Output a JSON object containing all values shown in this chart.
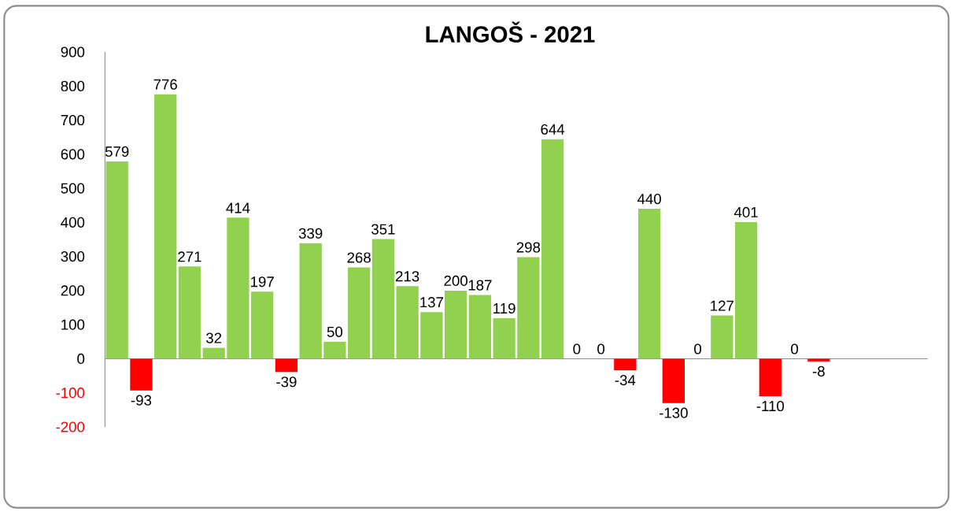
{
  "chart_data": {
    "type": "bar",
    "title": "LANGOŠ - 2021",
    "categories": [
      null,
      null,
      null,
      null,
      null,
      null,
      null,
      null,
      null,
      null,
      null,
      null,
      null,
      null,
      null,
      null,
      null,
      null,
      null,
      null,
      null,
      null,
      null,
      null,
      null,
      null,
      null,
      null,
      null,
      null,
      null,
      null,
      null,
      null
    ],
    "values": [
      579,
      -93,
      776,
      271,
      32,
      414,
      197,
      -39,
      339,
      50,
      268,
      351,
      213,
      137,
      200,
      187,
      119,
      298,
      644,
      0,
      0,
      -34,
      440,
      -130,
      0,
      127,
      401,
      -110,
      0,
      -8,
      null,
      null,
      null,
      null
    ],
    "colors": [
      "#92d050",
      "#ff0000",
      "#92d050",
      "#92d050",
      "#92d050",
      "#92d050",
      "#92d050",
      "#ff0000",
      "#92d050",
      "#92d050",
      "#92d050",
      "#92d050",
      "#92d050",
      "#92d050",
      "#92d050",
      "#92d050",
      "#92d050",
      "#92d050",
      "#92d050",
      "#92d050",
      "#92d050",
      "#ff0000",
      "#92d050",
      "#ff0000",
      "#92d050",
      "#92d050",
      "#92d050",
      "#ff0000",
      "#92d050",
      "#ff0000",
      "#92d050",
      "#92d050",
      "#92d050",
      "#92d050"
    ],
    "ylim": [
      -200,
      900
    ],
    "yticks": [
      -200,
      -100,
      0,
      100,
      200,
      300,
      400,
      500,
      600,
      700,
      800,
      900
    ],
    "data_labels": true,
    "tick_labels": "y"
  }
}
